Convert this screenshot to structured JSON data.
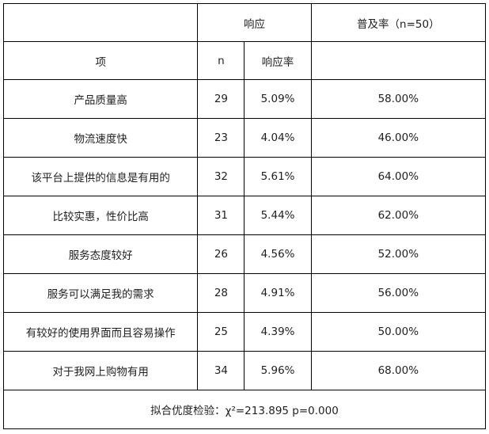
{
  "header": {
    "item_label": "项",
    "response_label": "响应",
    "n_label": "n",
    "rate_label": "响应率",
    "penetration_label": "普及率（n=50）"
  },
  "rows": [
    {
      "item": "产品质量高",
      "n": "29",
      "rate": "5.09%",
      "penetration": "58.00%"
    },
    {
      "item": "物流速度快",
      "n": "23",
      "rate": "4.04%",
      "penetration": "46.00%"
    },
    {
      "item": "该平台上提供的信息是有用的",
      "n": "32",
      "rate": "5.61%",
      "penetration": "64.00%"
    },
    {
      "item": "比较实惠，性价比高",
      "n": "31",
      "rate": "5.44%",
      "penetration": "62.00%"
    },
    {
      "item": "服务态度较好",
      "n": "26",
      "rate": "4.56%",
      "penetration": "52.00%"
    },
    {
      "item": "服务可以满足我的需求",
      "n": "28",
      "rate": "4.91%",
      "penetration": "56.00%"
    },
    {
      "item": "有较好的使用界面而且容易操作",
      "n": "25",
      "rate": "4.39%",
      "penetration": "50.00%"
    },
    {
      "item": "对于我网上购物有用",
      "n": "34",
      "rate": "5.96%",
      "penetration": "68.00%"
    }
  ],
  "footer": {
    "text": "拟合优度检验：χ²=213.895  p=0.000"
  }
}
